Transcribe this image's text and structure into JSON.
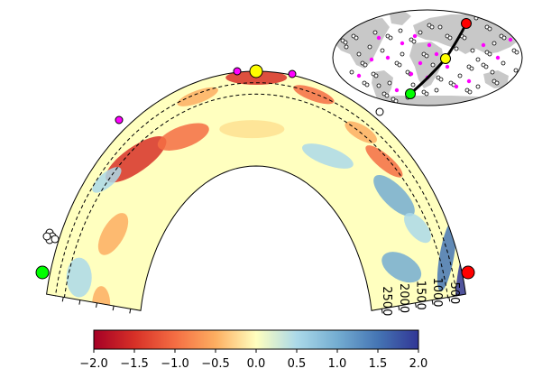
{
  "chart_data": {
    "type": "heatmap",
    "subtype": "mantle tomography cross-section with world-map inset",
    "title": "",
    "cross_section": {
      "depth_ticks_km": [
        "500",
        "1000",
        "1500",
        "2000",
        "2500"
      ],
      "dashed_depth_contours": 2,
      "endpoint_markers": [
        {
          "color": "#ff0000"
        },
        {
          "color": "#ffff00"
        },
        {
          "color": "#00ff00"
        }
      ],
      "surface_points": {
        "magenta": 3,
        "white": 5
      }
    },
    "colorbar": {
      "colormap": "RdYlBu",
      "range": [
        -2.0,
        2.0
      ],
      "tick_labels": [
        "−2.0",
        "−1.5",
        "−1.0",
        "−0.5",
        "0.0",
        "0.5",
        "1.0",
        "1.5",
        "2.0"
      ]
    },
    "inset_map": {
      "projection": "mollweide",
      "land_color": "#c8c8c8",
      "point_colors": [
        "#ff00ff",
        "#ffffff"
      ],
      "profile_line_color": "#000000"
    }
  }
}
